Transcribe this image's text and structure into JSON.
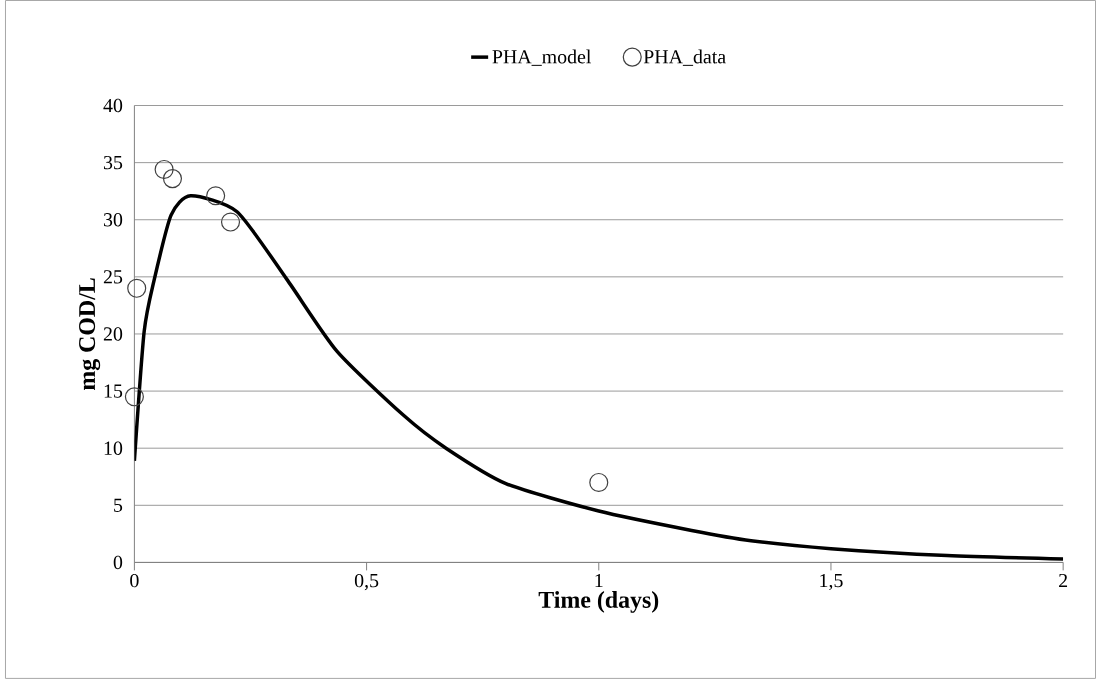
{
  "chart_data": {
    "type": "line",
    "xlabel": "Time (days)",
    "ylabel": "mg COD/L",
    "xlim": [
      0,
      2
    ],
    "xticks": [
      0,
      {
        "value": 0.5,
        "label": "0,5"
      },
      1,
      {
        "value": 1.5,
        "label": "1,5"
      },
      2
    ],
    "ylim": [
      0,
      40
    ],
    "yticks": [
      0,
      5,
      10,
      15,
      20,
      25,
      30,
      35,
      40
    ],
    "grid": "y",
    "legend": "top",
    "series": [
      {
        "name": "PHA_model",
        "color": "#000000",
        "marker": "none",
        "line_style": "solid",
        "x": [
          0,
          0.021,
          0.043,
          0.079,
          0.121,
          0.221,
          0.328,
          0.436,
          0.579,
          0.671,
          0.8,
          1.0,
          1.2,
          1.328,
          1.5,
          1.75,
          2
        ],
        "values": [
          8.9,
          20.2,
          24.8,
          30.4,
          32.1,
          30.7,
          24.8,
          18.5,
          12.9,
          10.0,
          6.9,
          4.5,
          2.8,
          1.9,
          1.2,
          0.6,
          0.3
        ]
      },
      {
        "name": "PHA_data",
        "type": "scatter",
        "color": "#404040",
        "marker": "circle",
        "x": [
          0,
          0.005,
          0.064,
          0.082,
          0.175,
          0.207,
          1.0
        ],
        "values": [
          14.5,
          24.0,
          34.4,
          33.6,
          32.1,
          29.8,
          7.0
        ]
      }
    ]
  }
}
